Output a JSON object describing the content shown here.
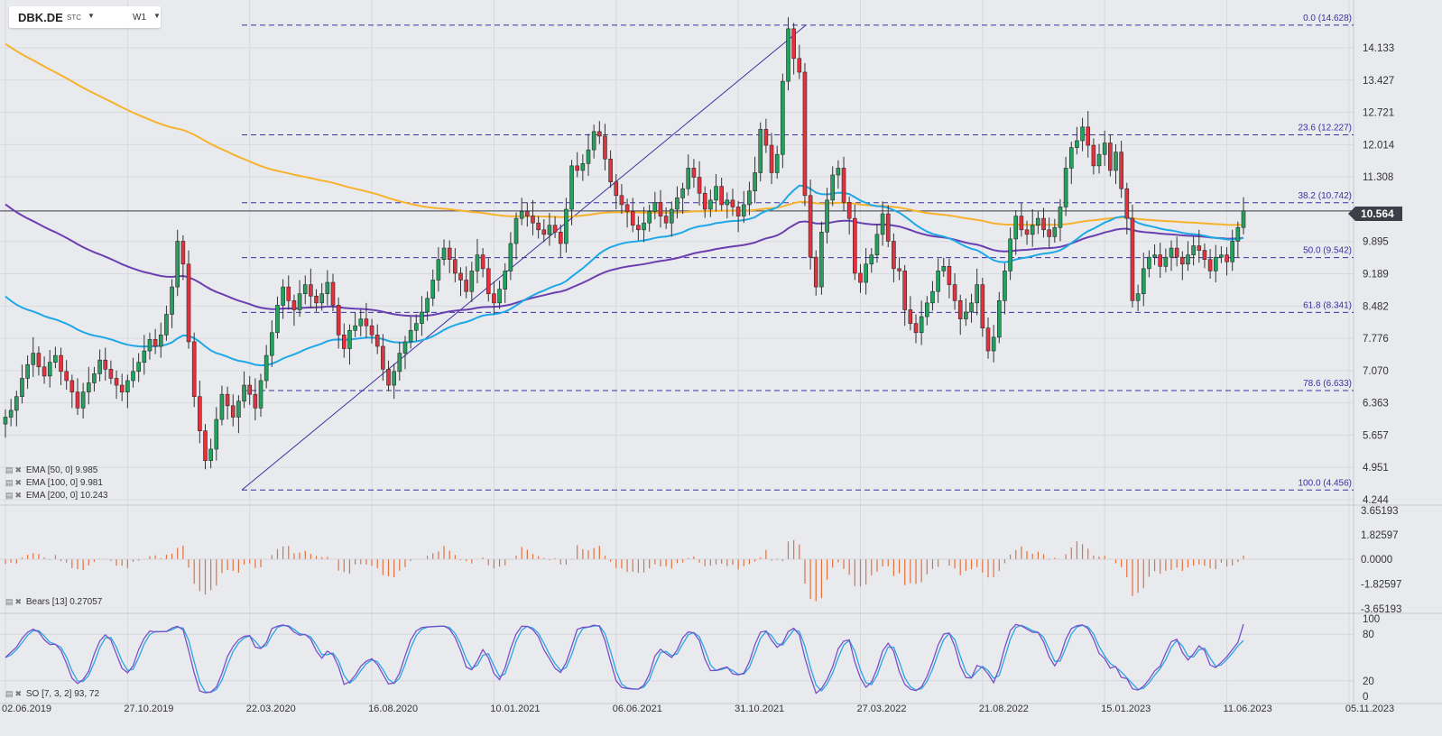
{
  "header": {
    "symbol": "DBK.DE",
    "exchange": "STC",
    "timeframe": "W1"
  },
  "current_price": "10.564",
  "legends": {
    "ema50": "EMA [50, 0] 9.985",
    "ema100": "EMA [100, 0] 9.981",
    "ema200": "EMA [200, 0] 10.243",
    "bears": "Bears [13] 0.27057",
    "so": "SO [7, 3, 2] 93, 72"
  },
  "colors": {
    "background": "#e9eaee",
    "grid": "#d7d9df",
    "bull_candle": "#26a05f",
    "bear_candle": "#e5313d",
    "ema50": "#1ea8e6",
    "ema100": "#6a3fb0",
    "ema200": "#f7b22d",
    "fib": "#3d2fa0",
    "bears_histogram": "#e2703d",
    "so_k": "#7b4fc8",
    "so_d": "#2aa6e0"
  },
  "chart_data": [
    {
      "type": "candlestick",
      "frequency": "weekly",
      "x_tick_labels": [
        "02.06.2019",
        "27.10.2019",
        "22.03.2020",
        "16.08.2020",
        "10.01.2021",
        "06.06.2021",
        "31.10.2021",
        "27.03.2022",
        "21.08.2022",
        "15.01.2023",
        "11.06.2023",
        "05.11.2023"
      ],
      "y_tick_labels": [
        "14.133",
        "13.427",
        "12.721",
        "12.014",
        "11.308",
        "10.564",
        "9.895",
        "9.189",
        "8.482",
        "7.776",
        "7.070",
        "6.363",
        "5.657",
        "4.951",
        "4.244"
      ],
      "ylim": [
        4.244,
        14.839
      ],
      "last_price": 10.564,
      "candles_close": [
        6.05,
        6.2,
        6.5,
        6.9,
        7.2,
        7.45,
        7.15,
        6.95,
        7.25,
        7.4,
        7.05,
        6.85,
        6.6,
        6.25,
        6.6,
        6.8,
        7.0,
        7.3,
        7.1,
        6.9,
        6.75,
        6.6,
        6.85,
        7.05,
        7.25,
        7.5,
        7.75,
        7.6,
        7.85,
        8.3,
        8.9,
        9.9,
        9.4,
        7.7,
        6.5,
        5.75,
        5.1,
        5.35,
        6.0,
        6.55,
        6.3,
        6.05,
        6.4,
        6.75,
        6.55,
        6.25,
        6.85,
        7.4,
        7.9,
        8.5,
        8.9,
        8.6,
        8.4,
        8.75,
        8.95,
        8.7,
        8.55,
        8.75,
        9.0,
        8.5,
        7.85,
        7.55,
        7.95,
        8.05,
        8.2,
        8.05,
        7.85,
        7.6,
        7.1,
        6.75,
        7.05,
        7.45,
        7.7,
        7.95,
        8.1,
        8.35,
        8.65,
        9.05,
        9.5,
        9.75,
        9.5,
        9.2,
        9.05,
        8.8,
        9.25,
        9.6,
        9.3,
        8.75,
        8.55,
        8.85,
        9.25,
        9.85,
        10.4,
        10.55,
        10.45,
        10.3,
        10.15,
        10.05,
        10.25,
        10.1,
        9.85,
        10.6,
        11.55,
        11.45,
        11.6,
        11.9,
        12.3,
        12.2,
        11.7,
        11.2,
        10.9,
        10.7,
        10.55,
        10.25,
        10.15,
        10.3,
        10.55,
        10.75,
        10.45,
        10.3,
        10.6,
        10.85,
        11.05,
        11.5,
        11.3,
        10.95,
        10.6,
        10.8,
        11.1,
        10.7,
        10.8,
        10.65,
        10.45,
        10.7,
        11.0,
        11.4,
        12.35,
        12.0,
        11.4,
        11.8,
        13.4,
        14.55,
        13.9,
        13.6,
        10.9,
        9.55,
        8.9,
        10.1,
        10.8,
        11.35,
        11.5,
        10.75,
        10.4,
        9.2,
        9.0,
        9.4,
        9.6,
        10.05,
        10.5,
        9.9,
        9.3,
        9.25,
        8.4,
        8.1,
        7.9,
        8.25,
        8.55,
        8.8,
        9.25,
        9.35,
        8.95,
        8.6,
        8.2,
        8.35,
        8.55,
        8.95,
        8.0,
        7.5,
        7.8,
        8.6,
        9.25,
        9.95,
        10.45,
        10.15,
        10.05,
        10.25,
        10.4,
        10.15,
        10.0,
        10.2,
        10.65,
        11.5,
        11.95,
        12.1,
        12.4,
        12.0,
        11.55,
        11.8,
        12.05,
        11.45,
        11.85,
        11.05,
        10.4,
        8.6,
        8.75,
        9.3,
        9.55,
        9.6,
        9.35,
        9.55,
        9.75,
        9.55,
        9.4,
        9.6,
        9.8,
        9.7,
        9.5,
        9.25,
        9.55,
        9.6,
        9.45,
        9.9,
        10.2,
        10.564
      ],
      "indicators": {
        "ema50_last": 9.985,
        "ema100_last": 9.981,
        "ema200_last": 10.243
      },
      "fibonacci": {
        "from": 4.456,
        "to": 14.628,
        "levels": [
          {
            "label": "0.0 (14.628)",
            "value": 14.628
          },
          {
            "label": "23.6 (12.227)",
            "value": 12.227
          },
          {
            "label": "38.2 (10.742)",
            "value": 10.742
          },
          {
            "label": "50.0 (9.542)",
            "value": 9.542
          },
          {
            "label": "61.8 (8.341)",
            "value": 8.341
          },
          {
            "label": "78.6 (6.633)",
            "value": 6.633
          },
          {
            "label": "100.0 (4.456)",
            "value": 4.456
          }
        ]
      }
    },
    {
      "type": "bar",
      "name": "Bears [13]",
      "last_value": 0.27057,
      "y_tick_labels": [
        "3.65193",
        "1.82597",
        "0.0000",
        "-1.82597",
        "-3.65193"
      ],
      "ylim": [
        -3.65193,
        3.65193
      ]
    },
    {
      "type": "line",
      "name": "SO [7, 3, 2]",
      "last_values": {
        "k": 93,
        "d": 72
      },
      "y_tick_labels": [
        "100",
        "80",
        "20",
        "0"
      ],
      "ylim": [
        0,
        100
      ]
    }
  ]
}
